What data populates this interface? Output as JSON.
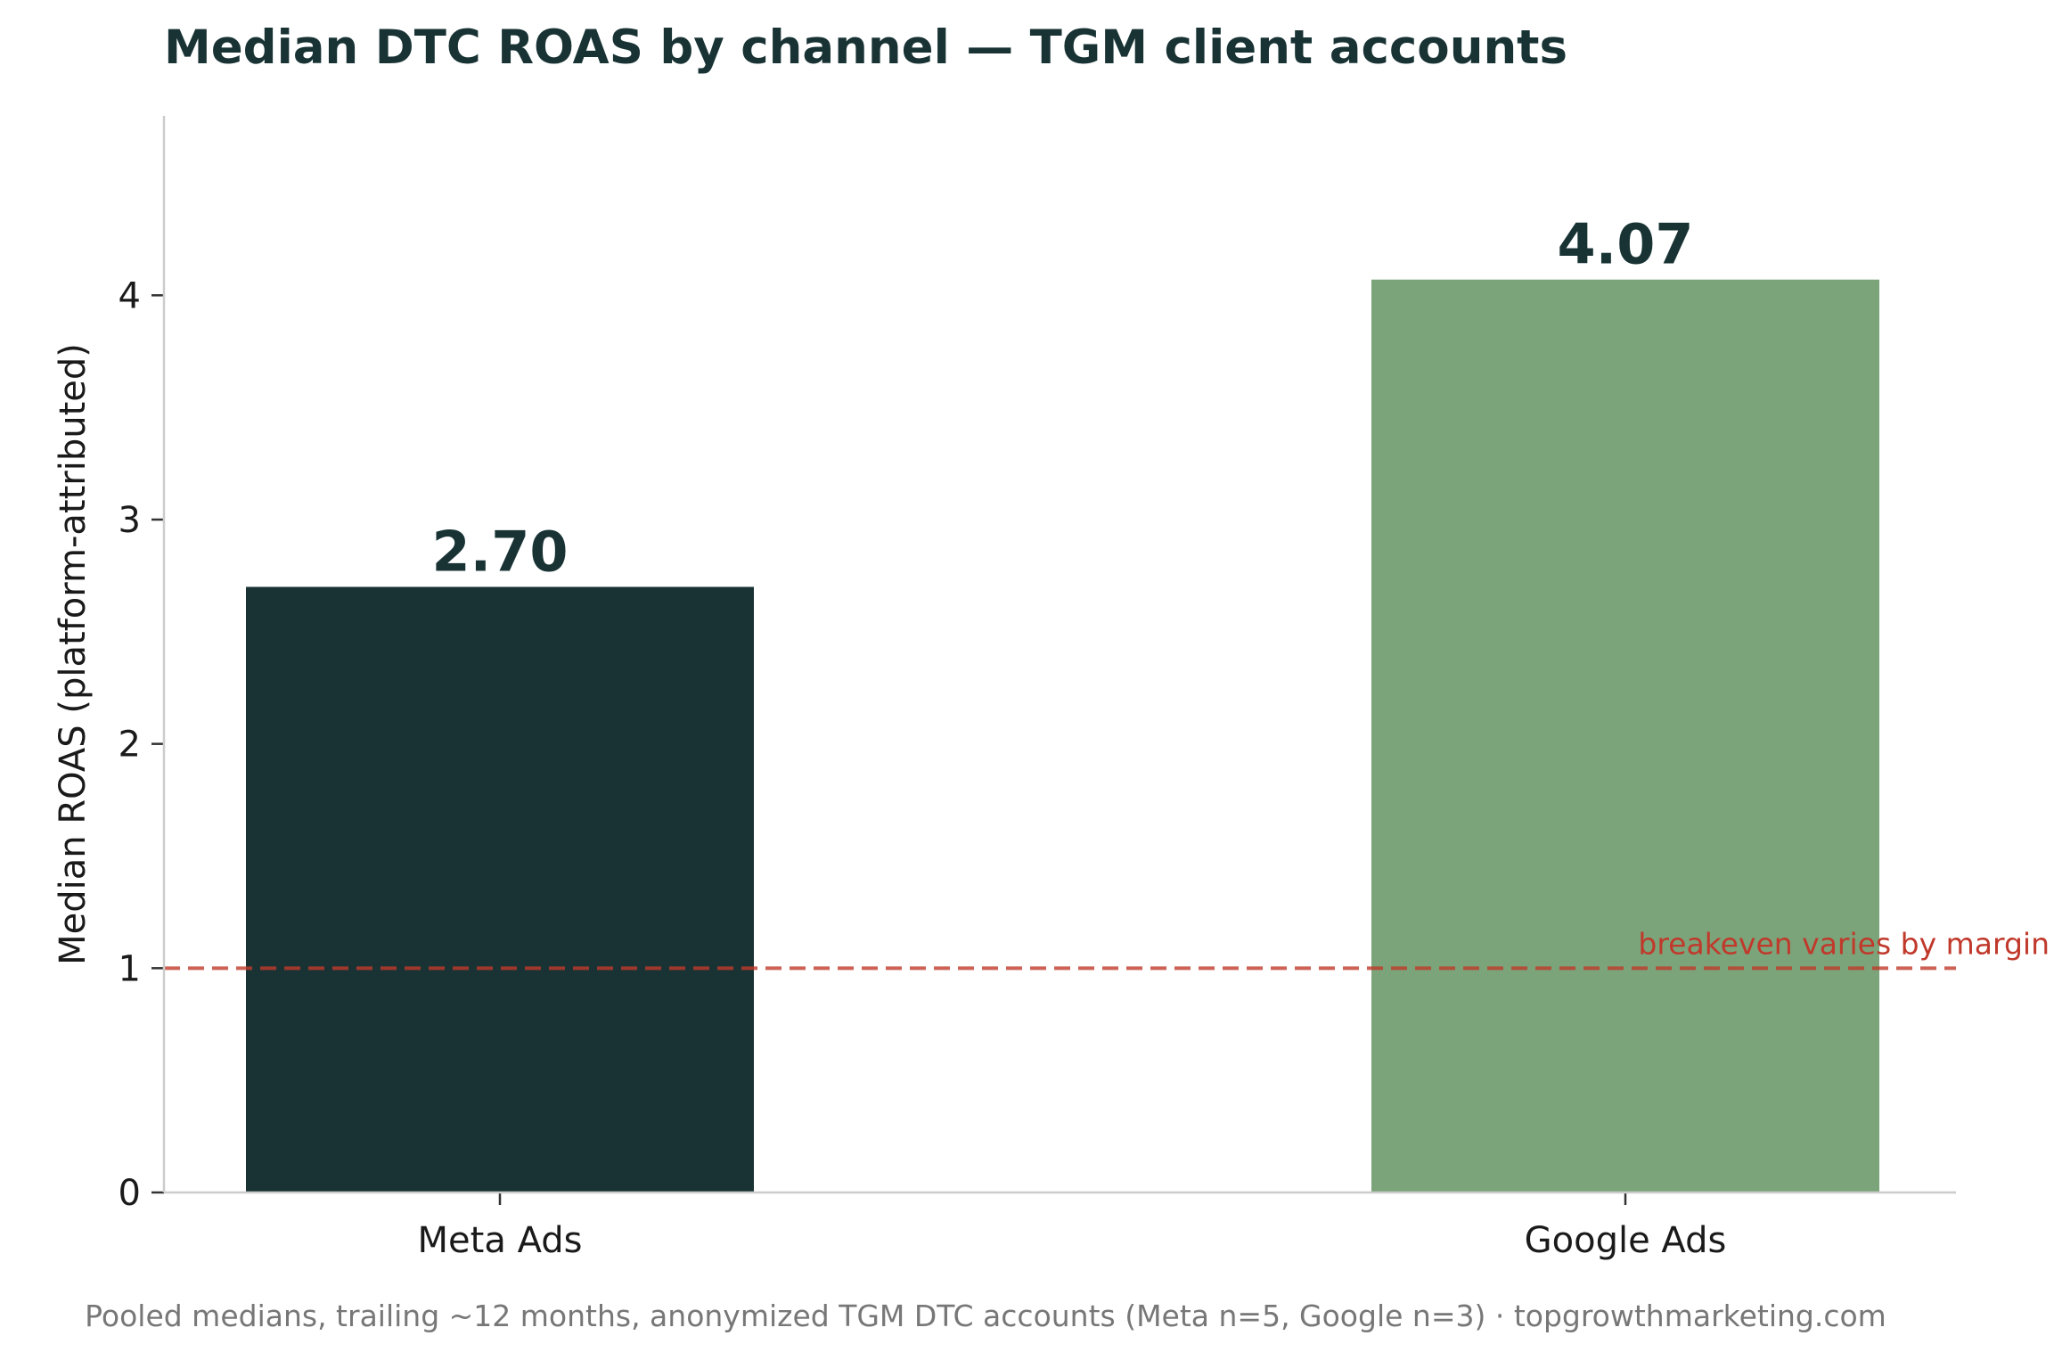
{
  "chart_data": {
    "type": "bar",
    "title": "Median DTC ROAS by channel — TGM client accounts",
    "categories": [
      "Meta Ads",
      "Google Ads"
    ],
    "values": [
      2.7,
      4.07
    ],
    "data_labels": [
      "2.70",
      "4.07"
    ],
    "bar_colors": [
      "#193335",
      "#7ba47b"
    ],
    "xlabel": "",
    "ylabel": "Median ROAS (platform-attributed)",
    "ylim": [
      0,
      4.8
    ],
    "yticks": [
      0,
      1,
      2,
      3,
      4
    ],
    "ytick_labels": [
      "0",
      "1",
      "2",
      "3",
      "4"
    ],
    "grid": false,
    "reference_line": {
      "value": 1,
      "label": "breakeven varies by margin",
      "color": "#c0392b",
      "style": "dashed"
    },
    "footnote": "Pooled medians, trailing ~12 months, anonymized TGM DTC accounts (Meta n=5, Google n=3) · topgrowthmarketing.com",
    "colors": {
      "title": "#193335",
      "text": "#1a1a1a",
      "axis": "#cccccc",
      "footnote": "#777777"
    }
  }
}
